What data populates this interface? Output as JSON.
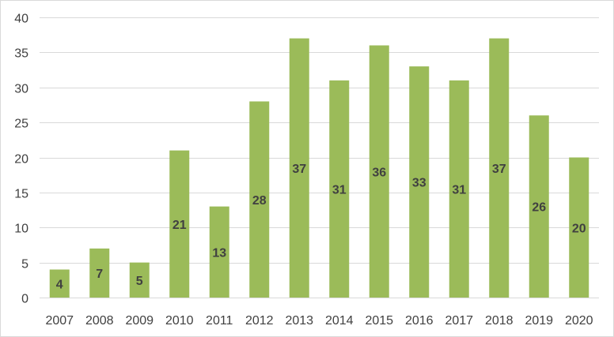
{
  "chart_data": {
    "type": "bar",
    "categories": [
      "2007",
      "2008",
      "2009",
      "2010",
      "2011",
      "2012",
      "2013",
      "2014",
      "2015",
      "2016",
      "2017",
      "2018",
      "2019",
      "2020"
    ],
    "values": [
      4,
      7,
      5,
      21,
      13,
      28,
      37,
      31,
      36,
      33,
      31,
      37,
      26,
      20
    ],
    "title": "",
    "xlabel": "",
    "ylabel": "",
    "ylim": [
      0,
      40
    ],
    "yticks": [
      "0",
      "5",
      "10",
      "15",
      "20",
      "25",
      "30",
      "35",
      "40"
    ],
    "grid": true,
    "legend": "none",
    "data_labels": true,
    "bar_color": "#9bbb59",
    "grid_color": "#d9d9d9",
    "label_color": "#404040"
  }
}
